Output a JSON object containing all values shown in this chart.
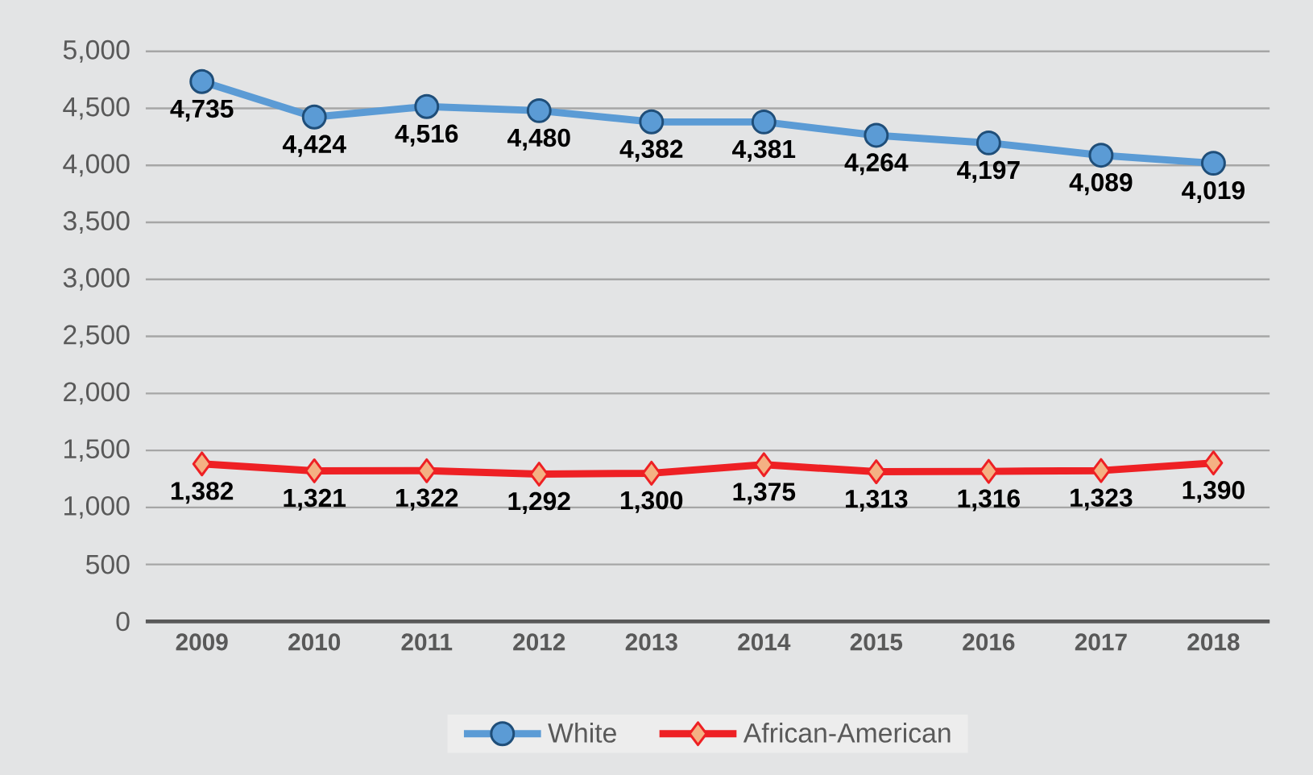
{
  "chart_data": {
    "type": "line",
    "categories": [
      "2009",
      "2010",
      "2011",
      "2012",
      "2013",
      "2014",
      "2015",
      "2016",
      "2017",
      "2018"
    ],
    "series": [
      {
        "name": "White",
        "color": "#5b9bd5",
        "marker": "circle",
        "values": [
          4735,
          4424,
          4516,
          4480,
          4382,
          4381,
          4264,
          4197,
          4089,
          4019
        ],
        "value_labels": [
          "4,735",
          "4,424",
          "4,516",
          "4,480",
          "4,382",
          "4,381",
          "4,264",
          "4,197",
          "4,089",
          "4,019"
        ]
      },
      {
        "name": "African-American",
        "color": "#ee2024",
        "marker": "diamond",
        "values": [
          1382,
          1321,
          1322,
          1292,
          1300,
          1375,
          1313,
          1316,
          1323,
          1390
        ],
        "value_labels": [
          "1,382",
          "1,321",
          "1,322",
          "1,292",
          "1,300",
          "1,375",
          "1,313",
          "1,316",
          "1,323",
          "1,390"
        ]
      }
    ],
    "ylim": [
      0,
      5000
    ],
    "yticks": [
      {
        "value": 0,
        "label": "0"
      },
      {
        "value": 500,
        "label": "500"
      },
      {
        "value": 1000,
        "label": "1,000"
      },
      {
        "value": 1500,
        "label": "1,500"
      },
      {
        "value": 2000,
        "label": "2,000"
      },
      {
        "value": 2500,
        "label": "2,500"
      },
      {
        "value": 3000,
        "label": "3,000"
      },
      {
        "value": 3500,
        "label": "3,500"
      },
      {
        "value": 4000,
        "label": "4,000"
      },
      {
        "value": 4500,
        "label": "4,500"
      },
      {
        "value": 5000,
        "label": "5,000"
      }
    ],
    "grid": "y",
    "legend": "bottom",
    "line_style": "solid"
  }
}
